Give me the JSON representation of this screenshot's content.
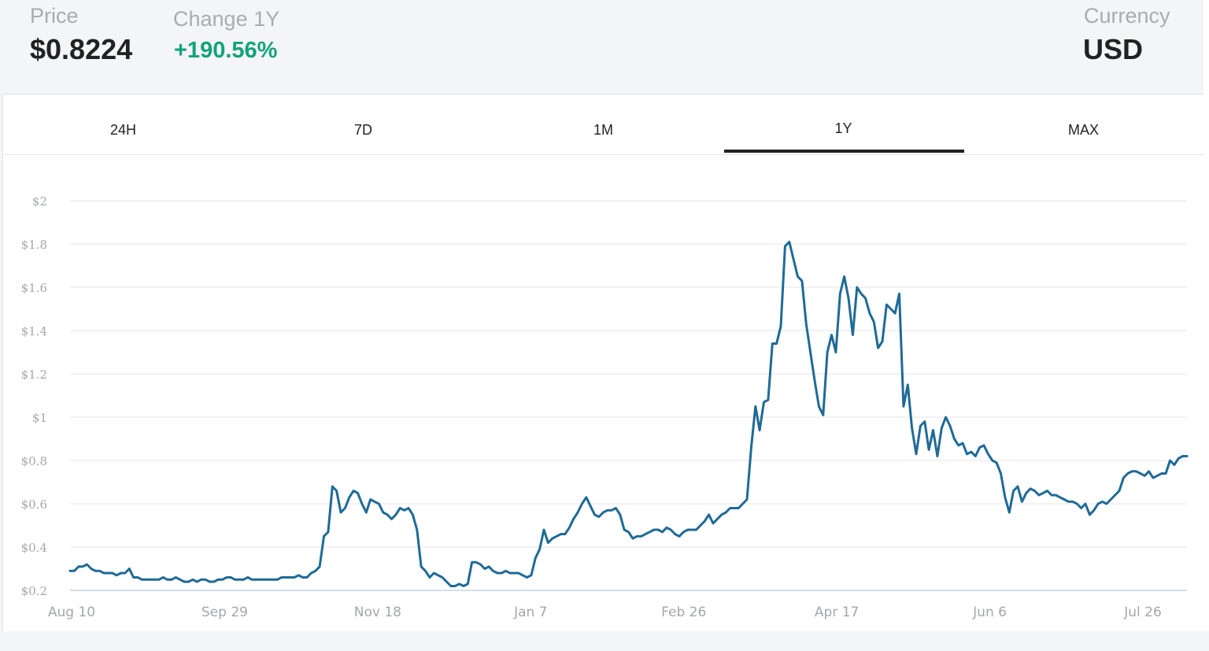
{
  "header": {
    "price_label": "Price",
    "price_value": "$0.8224",
    "change_label": "Change 1Y",
    "change_value": "+190.56%",
    "currency_label": "Currency",
    "currency_value": "USD"
  },
  "tabs": [
    {
      "label": "24H",
      "active": false
    },
    {
      "label": "7D",
      "active": false
    },
    {
      "label": "1M",
      "active": false
    },
    {
      "label": "1Y",
      "active": true
    },
    {
      "label": "MAX",
      "active": false
    }
  ],
  "colors": {
    "line": "#1f6a96",
    "positive": "#12a37a",
    "grid": "#e5e6e8",
    "axis_text": "#a4a7ab"
  },
  "chart_data": {
    "type": "line",
    "title": "",
    "xlabel": "",
    "ylabel": "",
    "ylim": [
      0.2,
      2.0
    ],
    "grid": true,
    "y_ticks": [
      "$0.2",
      "$0.4",
      "$0.6",
      "$0.8",
      "$1",
      "$1.2",
      "$1.4",
      "$1.6",
      "$1.8",
      "$2"
    ],
    "x_ticks": [
      "Aug 10",
      "Sep 29",
      "Nov 18",
      "Jan 7",
      "Feb 26",
      "Apr 17",
      "Jun 6",
      "Jul 26"
    ],
    "series": [
      {
        "values": [
          0.29,
          0.29,
          0.31,
          0.31,
          0.32,
          0.3,
          0.29,
          0.29,
          0.28,
          0.28,
          0.28,
          0.27,
          0.28,
          0.28,
          0.3,
          0.26,
          0.26,
          0.25,
          0.25,
          0.25,
          0.25,
          0.25,
          0.26,
          0.25,
          0.25,
          0.26,
          0.25,
          0.24,
          0.24,
          0.25,
          0.24,
          0.25,
          0.25,
          0.24,
          0.24,
          0.25,
          0.25,
          0.26,
          0.26,
          0.25,
          0.25,
          0.25,
          0.26,
          0.25,
          0.25,
          0.25,
          0.25,
          0.25,
          0.25,
          0.25,
          0.26,
          0.26,
          0.26,
          0.26,
          0.27,
          0.26,
          0.26,
          0.28,
          0.29,
          0.31,
          0.45,
          0.47,
          0.68,
          0.66,
          0.56,
          0.58,
          0.63,
          0.66,
          0.65,
          0.6,
          0.56,
          0.62,
          0.61,
          0.6,
          0.56,
          0.55,
          0.53,
          0.55,
          0.58,
          0.57,
          0.58,
          0.55,
          0.48,
          0.31,
          0.29,
          0.26,
          0.28,
          0.27,
          0.26,
          0.24,
          0.22,
          0.22,
          0.23,
          0.22,
          0.23,
          0.33,
          0.33,
          0.32,
          0.3,
          0.31,
          0.29,
          0.28,
          0.28,
          0.29,
          0.28,
          0.28,
          0.28,
          0.27,
          0.26,
          0.27,
          0.35,
          0.39,
          0.48,
          0.42,
          0.44,
          0.45,
          0.46,
          0.46,
          0.49,
          0.53,
          0.56,
          0.6,
          0.63,
          0.59,
          0.55,
          0.54,
          0.56,
          0.57,
          0.57,
          0.58,
          0.55,
          0.48,
          0.47,
          0.44,
          0.45,
          0.45,
          0.46,
          0.47,
          0.48,
          0.48,
          0.47,
          0.49,
          0.48,
          0.46,
          0.45,
          0.47,
          0.48,
          0.48,
          0.48,
          0.5,
          0.52,
          0.55,
          0.51,
          0.53,
          0.55,
          0.56,
          0.58,
          0.58,
          0.58,
          0.6,
          0.62,
          0.86,
          1.05,
          0.94,
          1.07,
          1.08,
          1.34,
          1.34,
          1.42,
          1.79,
          1.81,
          1.73,
          1.65,
          1.63,
          1.43,
          1.3,
          1.17,
          1.05,
          1.01,
          1.3,
          1.38,
          1.3,
          1.57,
          1.65,
          1.55,
          1.38,
          1.6,
          1.57,
          1.55,
          1.48,
          1.44,
          1.32,
          1.35,
          1.52,
          1.5,
          1.48,
          1.57,
          1.05,
          1.15,
          0.95,
          0.83,
          0.96,
          0.98,
          0.85,
          0.94,
          0.82,
          0.95,
          1.0,
          0.96,
          0.9,
          0.87,
          0.88,
          0.83,
          0.84,
          0.82,
          0.86,
          0.87,
          0.83,
          0.8,
          0.79,
          0.74,
          0.63,
          0.56,
          0.66,
          0.68,
          0.61,
          0.65,
          0.67,
          0.66,
          0.64,
          0.65,
          0.66,
          0.64,
          0.64,
          0.63,
          0.62,
          0.61,
          0.61,
          0.6,
          0.58,
          0.6,
          0.55,
          0.57,
          0.6,
          0.61,
          0.6,
          0.62,
          0.64,
          0.66,
          0.72,
          0.74,
          0.75,
          0.75,
          0.74,
          0.73,
          0.75,
          0.72,
          0.73,
          0.74,
          0.74,
          0.8,
          0.78,
          0.81,
          0.82,
          0.82
        ]
      }
    ]
  }
}
